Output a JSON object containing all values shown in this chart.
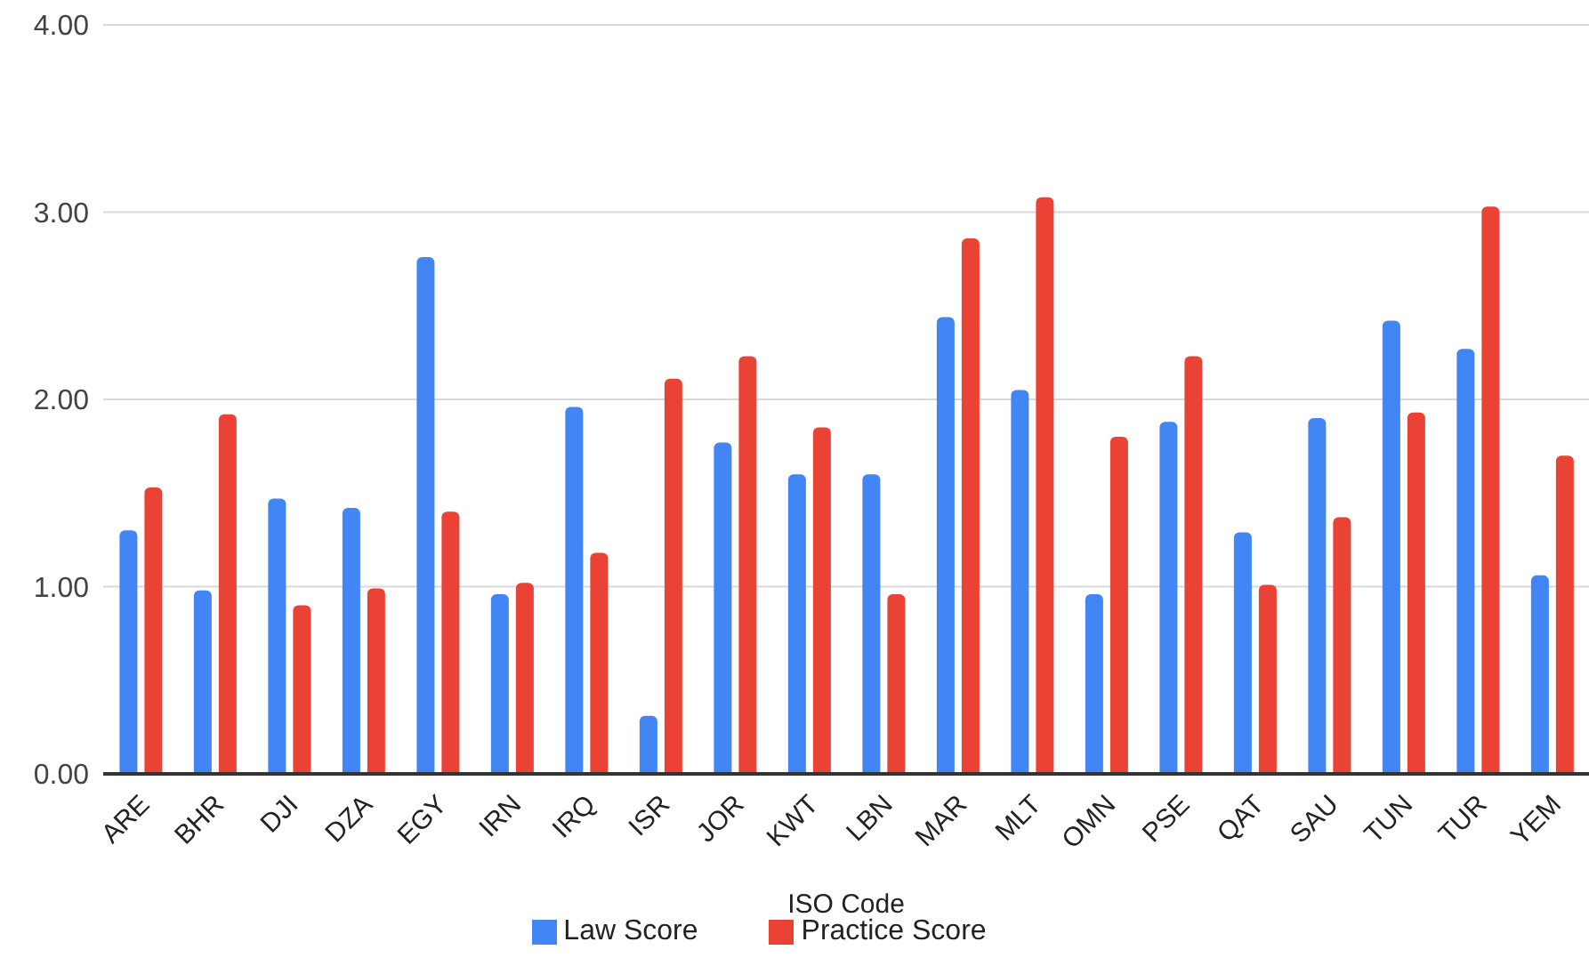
{
  "chart_data": {
    "type": "bar",
    "xlabel": "ISO Code",
    "categories": [
      "ARE",
      "BHR",
      "DJI",
      "DZA",
      "EGY",
      "IRN",
      "IRQ",
      "ISR",
      "JOR",
      "KWT",
      "LBN",
      "MAR",
      "MLT",
      "OMN",
      "PSE",
      "QAT",
      "SAU",
      "TUN",
      "TUR",
      "YEM"
    ],
    "series": [
      {
        "name": "Law Score",
        "color": "#4285f4",
        "values": [
          1.3,
          0.98,
          1.47,
          1.42,
          2.76,
          0.96,
          1.96,
          0.31,
          1.77,
          1.6,
          1.6,
          2.44,
          2.05,
          0.96,
          1.88,
          1.29,
          1.9,
          2.42,
          2.27,
          1.06
        ]
      },
      {
        "name": "Practice Score",
        "color": "#ea4335",
        "values": [
          1.53,
          1.92,
          0.9,
          0.99,
          1.4,
          1.02,
          1.18,
          2.11,
          2.23,
          1.85,
          0.96,
          2.86,
          3.08,
          1.8,
          2.23,
          1.01,
          1.37,
          1.93,
          3.03,
          1.7
        ]
      }
    ],
    "ylim": [
      0,
      4
    ],
    "yticks": [
      {
        "value": 0,
        "label": "0.00"
      },
      {
        "value": 1,
        "label": "1.00"
      },
      {
        "value": 2,
        "label": "2.00"
      },
      {
        "value": 3,
        "label": "3.00"
      },
      {
        "value": 4,
        "label": "4.00"
      }
    ],
    "grid": "y",
    "legend": "bottom"
  }
}
